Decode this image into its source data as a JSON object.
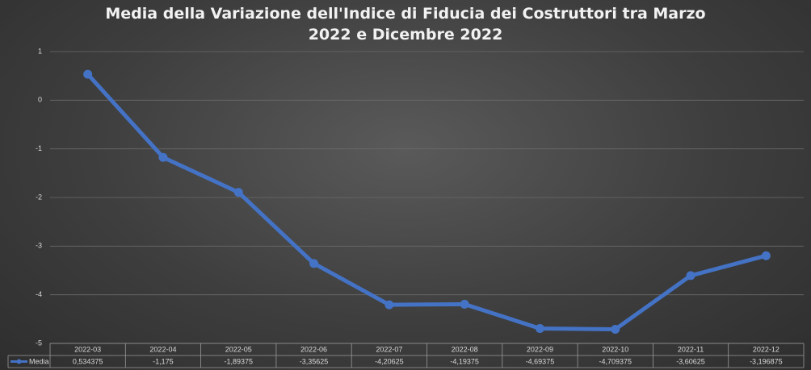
{
  "chart_data": {
    "type": "line",
    "title": "Media della Variazione dell'Indice di Fiducia dei Costruttori tra Marzo 2022 e Dicembre 2022",
    "categories": [
      "2022-03",
      "2022-04",
      "2022-05",
      "2022-06",
      "2022-07",
      "2022-08",
      "2022-09",
      "2022-10",
      "2022-11",
      "2022-12"
    ],
    "series": [
      {
        "name": "Media",
        "color": "#4472c4",
        "values": [
          0.534375,
          -1.175,
          -1.89375,
          -3.35625,
          -4.20625,
          -4.19375,
          -4.69375,
          -4.709375,
          -3.60625,
          -3.196875
        ],
        "value_labels": [
          "0,534375",
          "-1,175",
          "-1,89375",
          "-3,35625",
          "-4,20625",
          "-4,19375",
          "-4,69375",
          "-4,709375",
          "-3,60625",
          "-3,196875"
        ]
      }
    ],
    "ylim": [
      -5,
      1
    ],
    "yticks": [
      1,
      0,
      -1,
      -2,
      -3,
      -4,
      -5
    ],
    "grid": true
  }
}
